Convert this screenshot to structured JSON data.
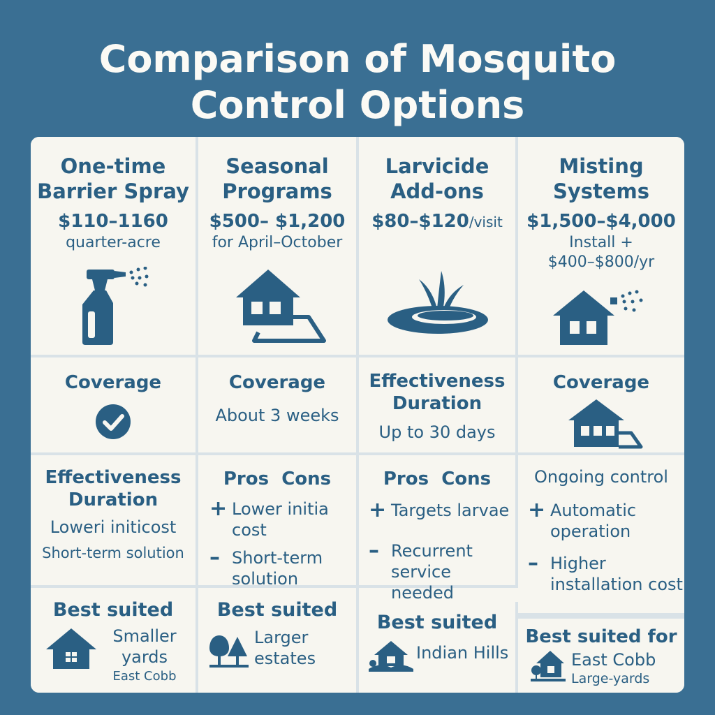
{
  "title_line1": "Comparison of Mosquito",
  "title_line2": "Control Options",
  "colors": {
    "background": "#3a6f93",
    "panel": "#f7f6f0",
    "ink": "#2a5f83",
    "divider": "#d9e2e7"
  },
  "columns": [
    {
      "name_line1": "One-time",
      "name_line2": "Barrier Spray",
      "price": "$110–1160",
      "price_note": "quarter-acre",
      "icon": "spray-bottle-icon"
    },
    {
      "name_line1": "Seasonal",
      "name_line2": "Programs",
      "price": "$500– $1,200",
      "price_note": "for April–October",
      "icon": "house-yard-icon"
    },
    {
      "name_line1": "Larvicide",
      "name_line2": "Add-ons",
      "price": "$80–$120",
      "price_unit": "/visit",
      "icon": "water-puddle-icon"
    },
    {
      "name_line1": "Misting",
      "name_line2": "Systems",
      "price": "$1,500–$4,000",
      "price_note_line1": "Install +",
      "price_note_line2": "$400–$800/yr",
      "icon": "house-misting-icon"
    }
  ],
  "row2": [
    {
      "heading": "Coverage",
      "icon": "checkmark-circle-icon"
    },
    {
      "heading": "Coverage",
      "text": "About 3 weeks"
    },
    {
      "heading_line1": "Effectiveness",
      "heading_line2": "Duration",
      "text": "Up to 30 days"
    },
    {
      "heading": "Coverage",
      "icon": "house-yard-icon"
    }
  ],
  "row3": [
    {
      "heading_line1": "Effectiveness",
      "heading_line2": "Duration",
      "text1": "Loweri initicost",
      "text2": "Short-term solution"
    },
    {
      "heading": "Pros  Cons",
      "pro_line1": "Lower initia",
      "pro_line2": "cost",
      "con_line1": "Short-term",
      "con_line2": "solution"
    },
    {
      "heading": "Pros  Cons",
      "pro_line1": "Targets larvae",
      "con_line1": "Recurrent",
      "con_line2": "service needed"
    },
    {
      "heading": "Ongoing control",
      "pro_line1": "Automatic",
      "pro_line2": "operation",
      "con_line1": "Higher",
      "con_line2": "installation cost"
    }
  ],
  "signs": {
    "plus": "+",
    "minus": "–"
  },
  "row4": [
    {
      "heading": "Best suited",
      "line1": "Smaller",
      "line2": "yards",
      "line3": "East Cobb",
      "icon": "house-icon"
    },
    {
      "heading": "Best suited",
      "line1": "Larger",
      "line2": "estates",
      "icon": "trees-icon"
    },
    {
      "heading": "Best suited",
      "line1": "Indian Hills",
      "icon": "house-hill-icon"
    },
    {
      "heading": "Best suited for",
      "line1": "East Cobb",
      "line2": "Large-yards",
      "icon": "house-tree-icon"
    }
  ]
}
